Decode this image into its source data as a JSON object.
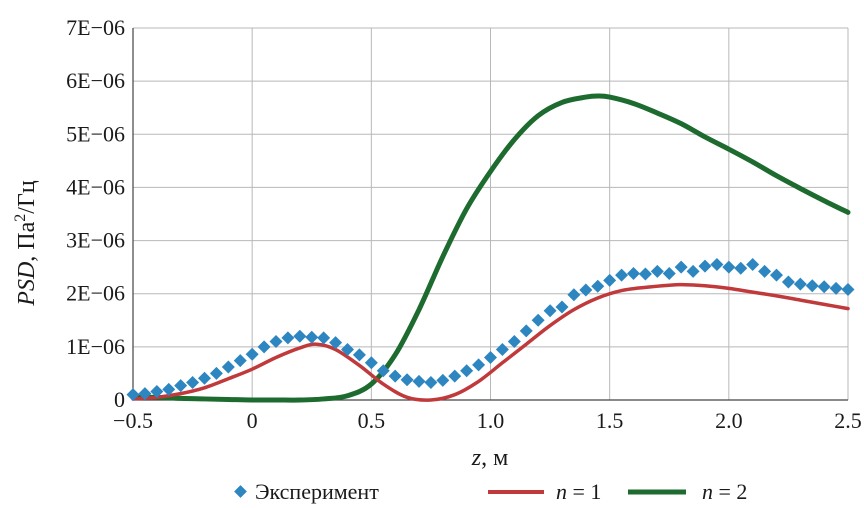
{
  "chart_data": {
    "type": "line",
    "title": "",
    "xlabel": {
      "var": "z",
      "unit": ", м"
    },
    "ylabel": {
      "var": "PSD",
      "unit_pre": ", Па",
      "unit_sup": "2",
      "unit_post": "/Гц"
    },
    "xlim": [
      -0.5,
      2.5
    ],
    "ylim": [
      0,
      7e-06
    ],
    "grid": true,
    "legend_position": "bottom",
    "x_ticks": [
      {
        "value": -0.5,
        "label": "−0.5"
      },
      {
        "value": 0,
        "label": "0"
      },
      {
        "value": 0.5,
        "label": "0.5"
      },
      {
        "value": 1.0,
        "label": "1.0"
      },
      {
        "value": 1.5,
        "label": "1.5"
      },
      {
        "value": 2.0,
        "label": "2.0"
      },
      {
        "value": 2.5,
        "label": "2.5"
      }
    ],
    "y_ticks": [
      {
        "value": 0,
        "label": "0"
      },
      {
        "value": 1e-06,
        "label": "1E−06"
      },
      {
        "value": 2e-06,
        "label": "2E−06"
      },
      {
        "value": 3e-06,
        "label": "3E−06"
      },
      {
        "value": 4e-06,
        "label": "4E−06"
      },
      {
        "value": 5e-06,
        "label": "5E−06"
      },
      {
        "value": 6e-06,
        "label": "6E−06"
      },
      {
        "value": 7e-06,
        "label": "7E−06"
      }
    ],
    "series": [
      {
        "name": "Эксперимент",
        "kind": "scatter",
        "marker": "diamond",
        "color": "#2e86c1",
        "x": [
          -0.5,
          -0.45,
          -0.4,
          -0.35,
          -0.3,
          -0.25,
          -0.2,
          -0.15,
          -0.1,
          -0.05,
          0.0,
          0.05,
          0.1,
          0.15,
          0.2,
          0.25,
          0.3,
          0.35,
          0.4,
          0.45,
          0.5,
          0.55,
          0.6,
          0.65,
          0.7,
          0.75,
          0.8,
          0.85,
          0.9,
          0.95,
          1.0,
          1.05,
          1.1,
          1.15,
          1.2,
          1.25,
          1.3,
          1.35,
          1.4,
          1.45,
          1.5,
          1.55,
          1.6,
          1.65,
          1.7,
          1.75,
          1.8,
          1.85,
          1.9,
          1.95,
          2.0,
          2.05,
          2.1,
          2.15,
          2.2,
          2.25,
          2.3,
          2.35,
          2.4,
          2.45,
          2.5
        ],
        "y": [
          1e-07,
          1.2e-07,
          1.6e-07,
          2e-07,
          2.7e-07,
          3.3e-07,
          4.1e-07,
          5e-07,
          6.2e-07,
          7.4e-07,
          8.6e-07,
          1e-06,
          1.1e-06,
          1.17e-06,
          1.2e-06,
          1.18e-06,
          1.17e-06,
          1.08e-06,
          9.5e-07,
          8.5e-07,
          7e-07,
          5.5e-07,
          4.5e-07,
          3.8e-07,
          3.5e-07,
          3.3e-07,
          3.7e-07,
          4.5e-07,
          5.5e-07,
          6.6e-07,
          8e-07,
          9.5e-07,
          1.1e-06,
          1.3e-06,
          1.5e-06,
          1.68e-06,
          1.75e-06,
          1.98e-06,
          2.07e-06,
          2.14e-06,
          2.25e-06,
          2.35e-06,
          2.38e-06,
          2.37e-06,
          2.42e-06,
          2.38e-06,
          2.5e-06,
          2.42e-06,
          2.52e-06,
          2.55e-06,
          2.5e-06,
          2.48e-06,
          2.55e-06,
          2.42e-06,
          2.35e-06,
          2.22e-06,
          2.18e-06,
          2.15e-06,
          2.13e-06,
          2.1e-06,
          2.08e-06
        ]
      },
      {
        "name": "n = 1",
        "legend_var": "n",
        "legend_rest": " = 1",
        "kind": "line",
        "color": "#c0393b",
        "x": [
          -0.5,
          -0.4,
          -0.3,
          -0.2,
          -0.1,
          0.0,
          0.1,
          0.2,
          0.27,
          0.35,
          0.45,
          0.55,
          0.65,
          0.75,
          0.85,
          0.95,
          1.05,
          1.15,
          1.25,
          1.35,
          1.45,
          1.55,
          1.65,
          1.75,
          1.8,
          1.9,
          2.0,
          2.1,
          2.2,
          2.3,
          2.4,
          2.5
        ],
        "y": [
          2e-08,
          5e-08,
          1.2e-07,
          2.3e-07,
          4e-07,
          5.8e-07,
          8e-07,
          9.8e-07,
          1.05e-06,
          9.5e-07,
          6.5e-07,
          3e-07,
          5e-08,
          0.0,
          1e-07,
          3.5e-07,
          7e-07,
          1.05e-06,
          1.4e-06,
          1.7e-06,
          1.92e-06,
          2.06e-06,
          2.12e-06,
          2.16e-06,
          2.17e-06,
          2.15e-06,
          2.1e-06,
          2.03e-06,
          1.96e-06,
          1.88e-06,
          1.8e-06,
          1.72e-06
        ]
      },
      {
        "name": "n = 2",
        "legend_var": "n",
        "legend_rest": " = 2",
        "kind": "line",
        "color": "#1d6b2f",
        "x": [
          -0.5,
          -0.4,
          -0.3,
          -0.2,
          -0.1,
          0.0,
          0.1,
          0.2,
          0.3,
          0.4,
          0.5,
          0.6,
          0.7,
          0.8,
          0.9,
          1.0,
          1.1,
          1.2,
          1.3,
          1.4,
          1.45,
          1.5,
          1.6,
          1.7,
          1.8,
          1.9,
          2.0,
          2.1,
          2.2,
          2.3,
          2.4,
          2.5
        ],
        "y": [
          5e-08,
          5e-08,
          3e-08,
          2e-08,
          1e-08,
          0.0,
          0.0,
          0.0,
          2e-08,
          8e-08,
          3e-07,
          8.5e-07,
          1.7e-06,
          2.7e-06,
          3.6e-06,
          4.3e-06,
          4.9e-06,
          5.35e-06,
          5.6e-06,
          5.7e-06,
          5.72e-06,
          5.7e-06,
          5.58e-06,
          5.4e-06,
          5.2e-06,
          4.95e-06,
          4.72e-06,
          4.48e-06,
          4.22e-06,
          3.98e-06,
          3.75e-06,
          3.53e-06
        ]
      }
    ]
  }
}
